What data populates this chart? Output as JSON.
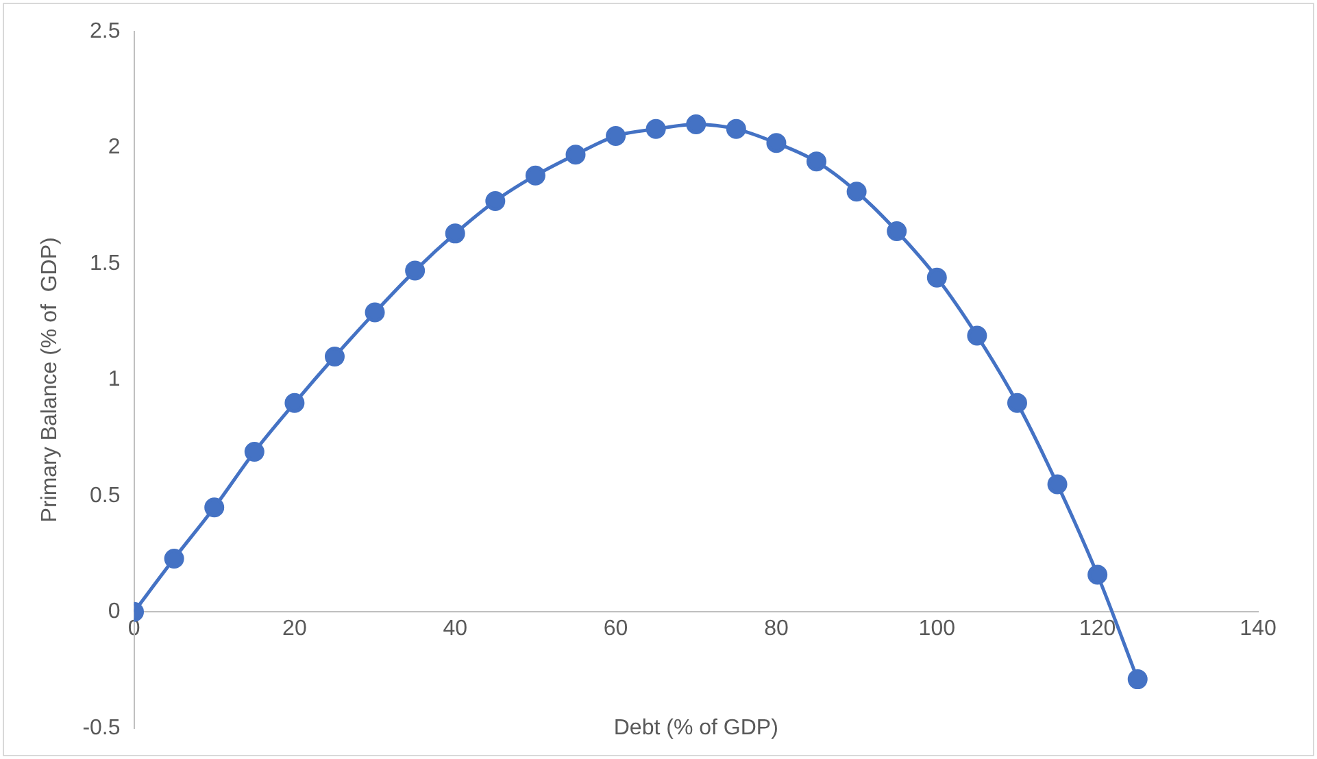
{
  "chart_data": {
    "type": "line",
    "xlabel": "Debt (% of GDP)",
    "ylabel": "Primary Balance (% of  GDP)",
    "x": [
      0,
      5,
      10,
      15,
      20,
      25,
      30,
      35,
      40,
      45,
      50,
      55,
      60,
      65,
      70,
      75,
      80,
      85,
      90,
      95,
      100,
      105,
      110,
      115,
      120,
      125
    ],
    "values": [
      0,
      0.23,
      0.45,
      0.69,
      0.9,
      1.1,
      1.29,
      1.47,
      1.63,
      1.77,
      1.88,
      1.97,
      2.05,
      2.08,
      2.1,
      2.08,
      2.02,
      1.94,
      1.81,
      1.64,
      1.44,
      1.19,
      0.9,
      0.55,
      0.16,
      -0.29
    ],
    "color": "#4472c4",
    "marker": "circle",
    "line_style": "solid",
    "xlim": [
      0,
      140
    ],
    "xticks": [
      0,
      20,
      40,
      60,
      80,
      100,
      120,
      140
    ],
    "ylim": [
      -0.5,
      2.5
    ],
    "yticks": [
      -0.5,
      0,
      0.5,
      1,
      1.5,
      2,
      2.5
    ]
  }
}
